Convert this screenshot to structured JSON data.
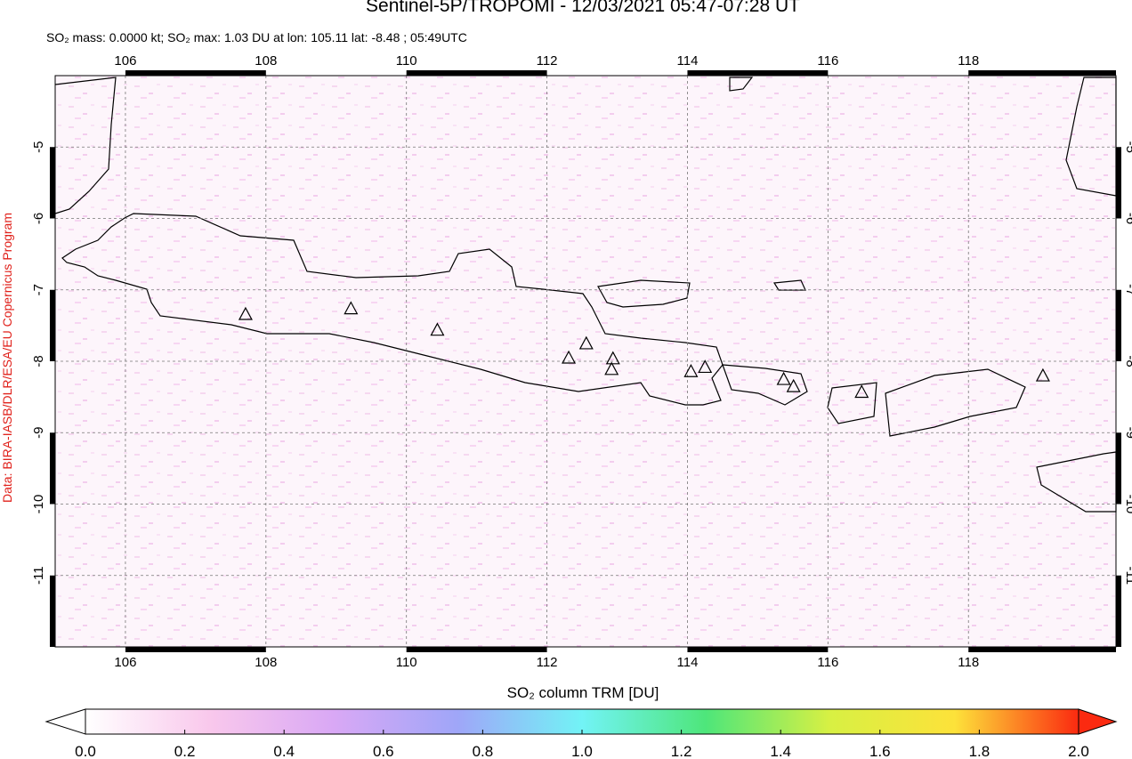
{
  "chart_data": {
    "type": "map",
    "title": "Sentinel-5P/TROPOMI - 12/03/2021 05:47-07:28 UT",
    "subtitle": "SO₂ mass: 0.0000 kt; SO₂ max: 1.03 DU at lon: 105.11 lat: -8.48 ; 05:49UTC",
    "attribution": "Data: BIRA-IASB/DLR/ESA/EU Copernicus Program",
    "xlim": [
      105,
      120.1
    ],
    "ylim": [
      -12,
      -4
    ],
    "xticks": [
      106,
      108,
      110,
      112,
      114,
      116,
      118
    ],
    "yticks": [
      -5,
      -6,
      -7,
      -8,
      -9,
      -10,
      -11
    ],
    "grid": true,
    "volcanoes": {
      "x": [
        107.71,
        109.21,
        110.44,
        112.31,
        112.56,
        112.94,
        112.92,
        114.05,
        114.25,
        115.37,
        115.51,
        116.48,
        119.06
      ],
      "y": [
        -7.34,
        -7.26,
        -7.56,
        -7.95,
        -7.75,
        -7.96,
        -8.11,
        -8.14,
        -8.08,
        -8.25,
        -8.35,
        -8.43,
        -8.2
      ]
    },
    "colorbar": {
      "label": "SO₂ column TRM [DU]",
      "lim": [
        0,
        2
      ],
      "ticks": [
        {
          "value": 0,
          "label": "0.0"
        },
        {
          "value": 0.2,
          "label": "0.2"
        },
        {
          "value": 0.4,
          "label": "0.4"
        },
        {
          "value": 0.6,
          "label": "0.6"
        },
        {
          "value": 0.8,
          "label": "0.8"
        },
        {
          "value": 1,
          "label": "1.0"
        },
        {
          "value": 1.2,
          "label": "1.2"
        },
        {
          "value": 1.4,
          "label": "1.4"
        },
        {
          "value": 1.6,
          "label": "1.6"
        },
        {
          "value": 1.8,
          "label": "1.8"
        },
        {
          "value": 2,
          "label": "2.0"
        }
      ],
      "colors": [
        "#ffffff",
        "#f9c8ec",
        "#d9a8f5",
        "#9fa6f8",
        "#72f3f6",
        "#4ee67a",
        "#d8f043",
        "#fde23a",
        "#fb2a10"
      ]
    }
  }
}
